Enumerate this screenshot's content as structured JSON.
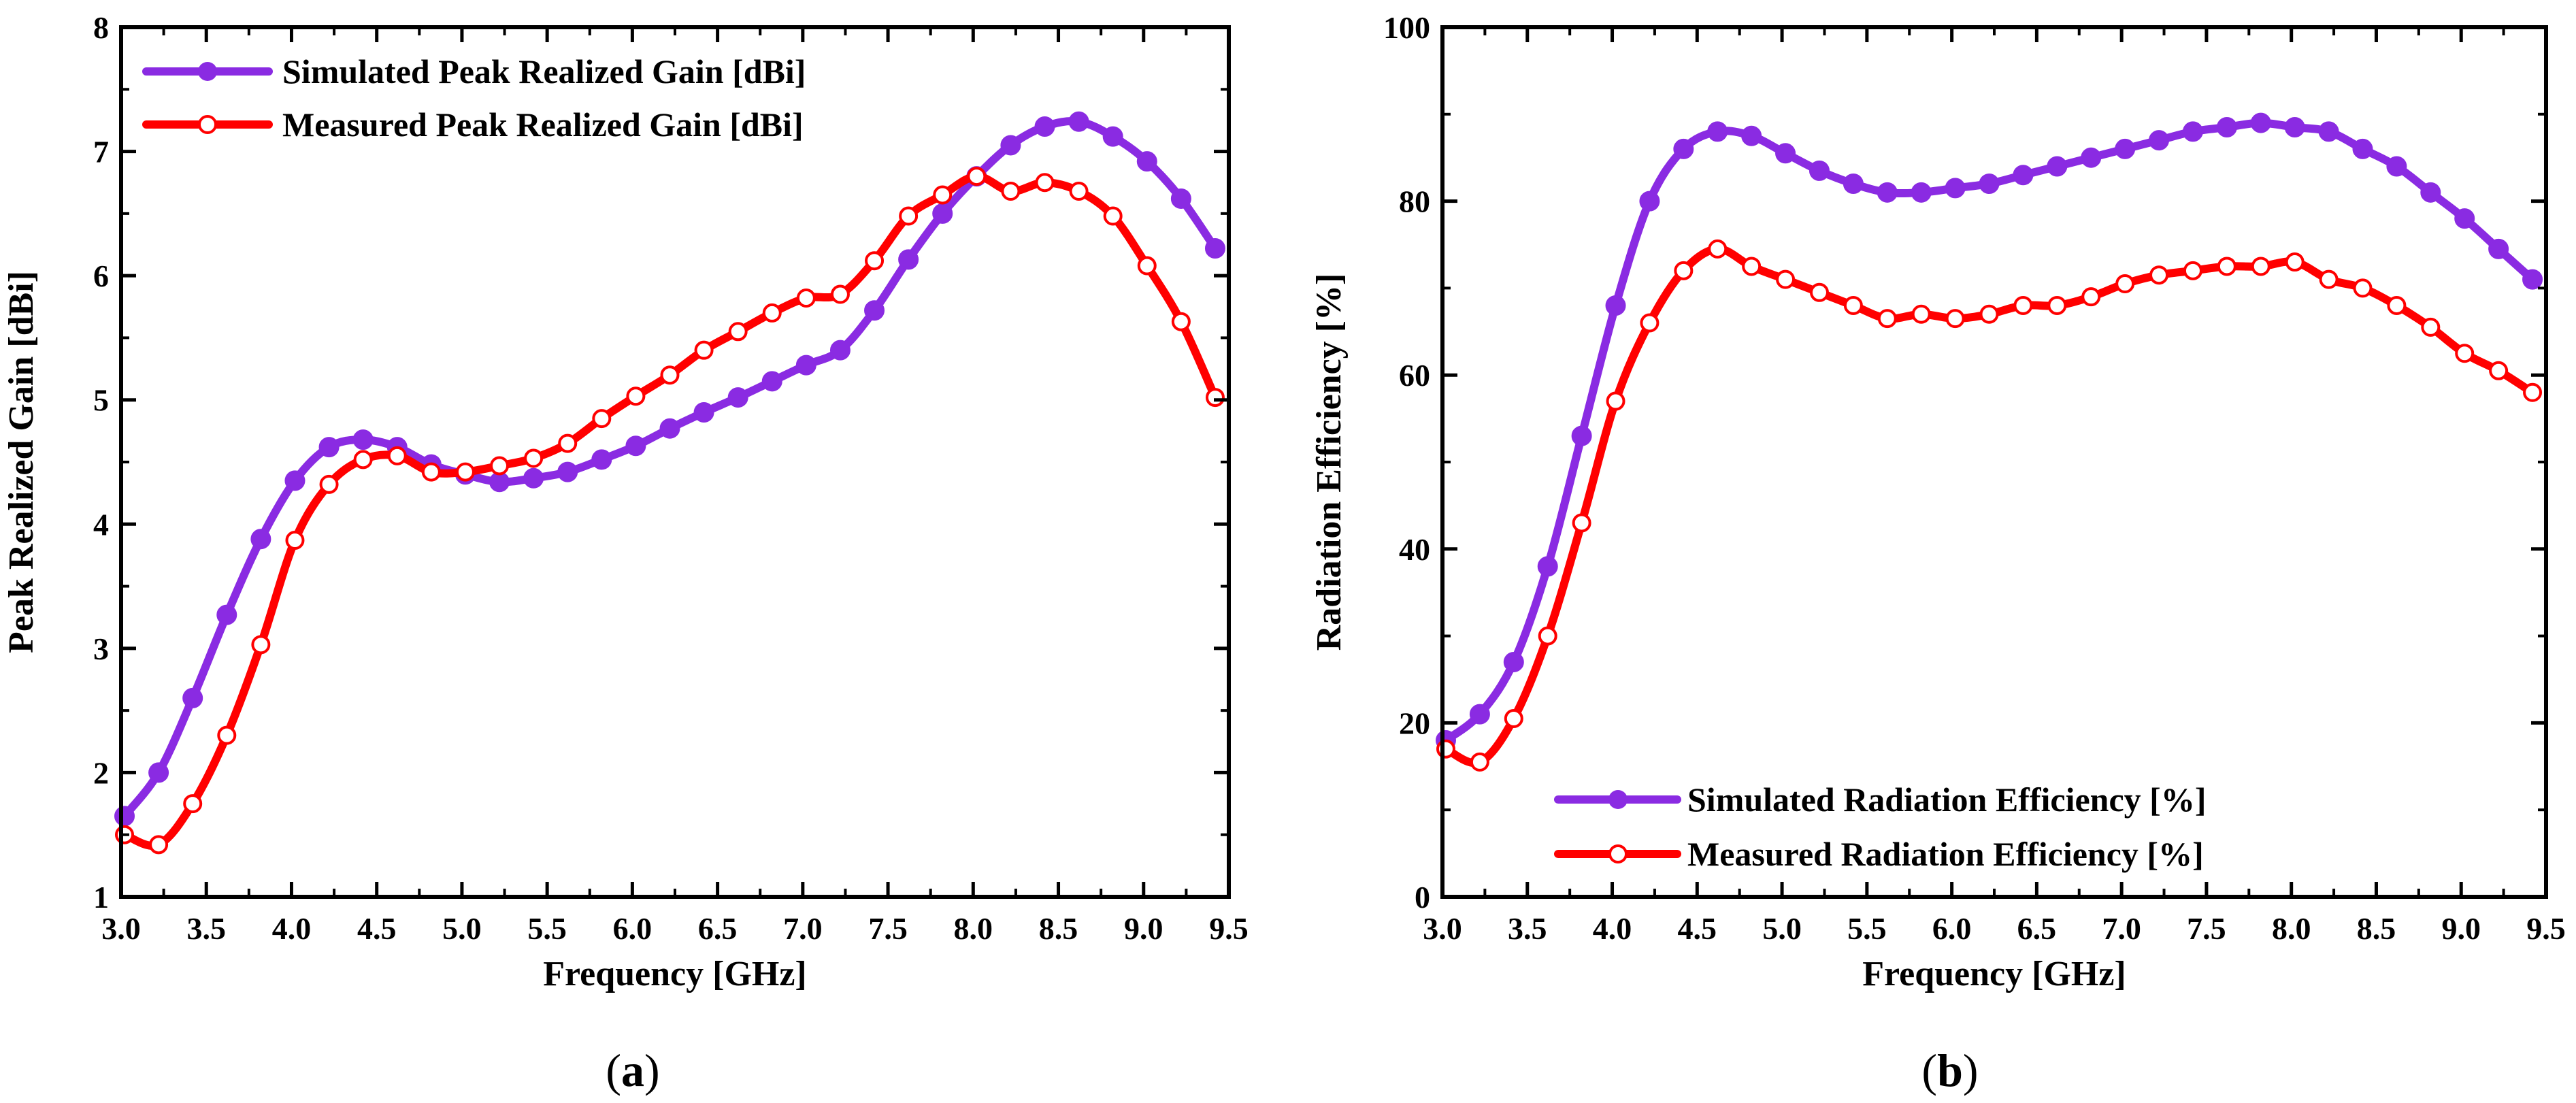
{
  "colors": {
    "simulated": "#8A2BE2",
    "measured": "#FF0000",
    "axis": "#000000",
    "marker_fill_measured": "#FFFFFF"
  },
  "chart_data": [
    {
      "id": "a",
      "type": "line",
      "caption": {
        "open": "(",
        "letter": "a",
        "close": ")"
      },
      "title": "",
      "xlabel": "Frequency [GHz]",
      "ylabel": "Peak Realized Gain [dBi]",
      "xlim": [
        3.0,
        9.5
      ],
      "ylim": [
        1,
        8
      ],
      "xticks": [
        "3.0",
        "3.5",
        "4.0",
        "4.5",
        "5.0",
        "5.5",
        "6.0",
        "6.5",
        "7.0",
        "7.5",
        "8.0",
        "8.5",
        "9.0",
        "9.5"
      ],
      "yticks": [
        "1",
        "2",
        "3",
        "4",
        "5",
        "6",
        "7",
        "8"
      ],
      "legend_position": "top-left",
      "series": [
        {
          "name": "Simulated Peak Realized Gain [dBi]",
          "color": "#8A2BE2",
          "marker": "filled-circle",
          "x": [
            3.02,
            3.22,
            3.42,
            3.62,
            3.82,
            4.02,
            4.22,
            4.42,
            4.62,
            4.82,
            5.02,
            5.22,
            5.42,
            5.62,
            5.82,
            6.02,
            6.22,
            6.42,
            6.62,
            6.82,
            7.02,
            7.22,
            7.42,
            7.62,
            7.82,
            8.02,
            8.22,
            8.42,
            8.62,
            8.82,
            9.02,
            9.22,
            9.42
          ],
          "y": [
            1.65,
            2.0,
            2.6,
            3.27,
            3.88,
            4.35,
            4.62,
            4.68,
            4.62,
            4.48,
            4.4,
            4.34,
            4.37,
            4.42,
            4.52,
            4.63,
            4.77,
            4.9,
            5.02,
            5.15,
            5.28,
            5.4,
            5.72,
            6.13,
            6.5,
            6.8,
            7.05,
            7.2,
            7.24,
            7.12,
            6.92,
            6.62,
            6.22
          ]
        },
        {
          "name": "Measured Peak Realized Gain [dBi]",
          "color": "#FF0000",
          "marker": "open-circle",
          "x": [
            3.02,
            3.22,
            3.42,
            3.62,
            3.82,
            4.02,
            4.22,
            4.42,
            4.62,
            4.82,
            5.02,
            5.22,
            5.42,
            5.62,
            5.82,
            6.02,
            6.22,
            6.42,
            6.62,
            6.82,
            7.02,
            7.22,
            7.42,
            7.62,
            7.82,
            8.02,
            8.22,
            8.42,
            8.62,
            8.82,
            9.02,
            9.22,
            9.42
          ],
          "y": [
            1.5,
            1.42,
            1.75,
            2.3,
            3.03,
            3.87,
            4.32,
            4.52,
            4.55,
            4.42,
            4.42,
            4.47,
            4.53,
            4.65,
            4.85,
            5.03,
            5.2,
            5.4,
            5.55,
            5.7,
            5.82,
            5.85,
            6.12,
            6.48,
            6.65,
            6.8,
            6.68,
            6.75,
            6.68,
            6.48,
            6.08,
            5.63,
            5.02
          ]
        }
      ]
    },
    {
      "id": "b",
      "type": "line",
      "caption": {
        "open": "(",
        "letter": "b",
        "close": ")"
      },
      "title": "",
      "xlabel": "Frequency [GHz]",
      "ylabel": "Radiation Efficiency [%]",
      "xlim": [
        3.0,
        9.5
      ],
      "ylim": [
        0,
        100
      ],
      "xticks": [
        "3.0",
        "3.5",
        "4.0",
        "4.5",
        "5.0",
        "5.5",
        "6.0",
        "6.5",
        "7.0",
        "7.5",
        "8.0",
        "8.5",
        "9.0",
        "9.5"
      ],
      "yticks": [
        "0",
        "20",
        "40",
        "60",
        "80",
        "100"
      ],
      "legend_position": "bottom-right",
      "series": [
        {
          "name": "Simulated Radiation Efficiency [%]",
          "color": "#8A2BE2",
          "marker": "filled-circle",
          "x": [
            3.02,
            3.22,
            3.42,
            3.62,
            3.82,
            4.02,
            4.22,
            4.42,
            4.62,
            4.82,
            5.02,
            5.22,
            5.42,
            5.62,
            5.82,
            6.02,
            6.22,
            6.42,
            6.62,
            6.82,
            7.02,
            7.22,
            7.42,
            7.62,
            7.82,
            8.02,
            8.22,
            8.42,
            8.62,
            8.82,
            9.02,
            9.22,
            9.42
          ],
          "y": [
            18,
            21,
            27,
            38,
            53,
            68,
            80,
            86,
            88,
            87.5,
            85.5,
            83.5,
            82,
            81,
            81,
            81.5,
            82,
            83,
            84,
            85,
            86,
            87,
            88,
            88.5,
            89,
            88.5,
            88,
            86,
            84,
            81,
            78,
            74.5,
            71
          ]
        },
        {
          "name": "Measured Radiation Efficiency [%]",
          "color": "#FF0000",
          "marker": "open-circle",
          "x": [
            3.02,
            3.22,
            3.42,
            3.62,
            3.82,
            4.02,
            4.22,
            4.42,
            4.62,
            4.82,
            5.02,
            5.22,
            5.42,
            5.62,
            5.82,
            6.02,
            6.22,
            6.42,
            6.62,
            6.82,
            7.02,
            7.22,
            7.42,
            7.62,
            7.82,
            8.02,
            8.22,
            8.42,
            8.62,
            8.82,
            9.02,
            9.22,
            9.42
          ],
          "y": [
            17,
            15.5,
            20.5,
            30,
            43,
            57,
            66,
            72,
            74.5,
            72.5,
            71,
            69.5,
            68,
            66.5,
            67,
            66.5,
            67,
            68,
            68,
            69,
            70.5,
            71.5,
            72,
            72.5,
            72.5,
            73,
            71,
            70,
            68,
            65.5,
            62.5,
            60.5,
            58
          ]
        }
      ]
    }
  ]
}
